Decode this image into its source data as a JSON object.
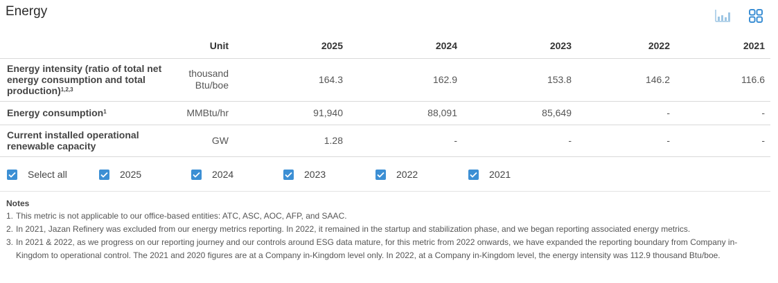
{
  "title": "Energy",
  "icons": {
    "chart_view": "bar-chart-icon",
    "table_view": "grid-icon"
  },
  "table": {
    "headers": {
      "unit": "Unit",
      "years": [
        "2025",
        "2024",
        "2023",
        "2022",
        "2021"
      ]
    },
    "rows": [
      {
        "metric": "Energy intensity (ratio of total net energy consumption and total production)",
        "sup": "1,2,3",
        "unit_line1": "thousand",
        "unit_line2": "Btu/boe",
        "values": [
          "164.3",
          "162.9",
          "153.8",
          "146.2",
          "116.6"
        ]
      },
      {
        "metric": "Energy consumption",
        "sup": "1",
        "unit": "MMBtu/hr",
        "values": [
          "91,940",
          "88,091",
          "85,649",
          "-",
          "-"
        ]
      },
      {
        "metric": "Current installed operational renewable capacity",
        "unit": "GW",
        "values": [
          "1.28",
          "-",
          "-",
          "-",
          "-"
        ]
      }
    ]
  },
  "filters": [
    {
      "label": "Select all",
      "checked": true
    },
    {
      "label": "2025",
      "checked": true
    },
    {
      "label": "2024",
      "checked": true
    },
    {
      "label": "2023",
      "checked": true
    },
    {
      "label": "2022",
      "checked": true
    },
    {
      "label": "2021",
      "checked": true
    }
  ],
  "notes": {
    "title": "Notes",
    "items": [
      {
        "num": "1.",
        "text": "This metric is not applicable to our office-based entities: ATC, ASC, AOC, AFP, and SAAC."
      },
      {
        "num": "2.",
        "text": "In 2021, Jazan Refinery was excluded from our energy metrics reporting. In 2022, it remained in the startup and stabilization phase, and we began reporting associated energy metrics."
      },
      {
        "num": "3.",
        "text": "In 2021 & 2022, as we progress on our reporting journey and our controls around ESG data mature, for this metric from 2022 onwards, we have expanded the reporting boundary from Company in-Kingdom to operational control. The 2021 and 2020 figures are at a Company in-Kingdom level only. In 2022, at a Company in-Kingdom level, the energy intensity was 112.9 thousand Btu/boe."
      }
    ]
  }
}
